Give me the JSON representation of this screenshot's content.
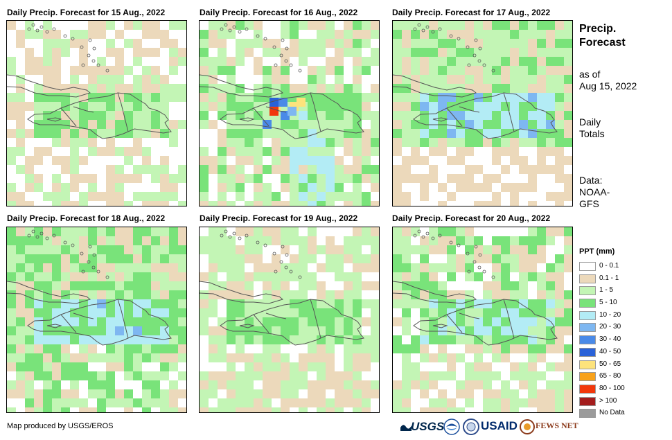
{
  "panels": [
    {
      "title": "Daily Precip. Forecast for 15 Aug., 2022"
    },
    {
      "title": "Daily Precip. Forecast for 16 Aug., 2022"
    },
    {
      "title": "Daily Precip. Forecast for 17 Aug., 2022"
    },
    {
      "title": "Daily Precip. Forecast for 18 Aug., 2022"
    },
    {
      "title": "Daily Precip. Forecast for 19 Aug., 2022"
    },
    {
      "title": "Daily Precip. Forecast for 20 Aug., 2022"
    }
  ],
  "sidebar": {
    "title_line1": "Precip.",
    "title_line2": "Forecast",
    "asof_line1": "as of",
    "asof_line2": "Aug 15, 2022",
    "totals_line1": "Daily",
    "totals_line2": "Totals",
    "data_line1": "Data:",
    "data_line2": "NOAA-",
    "data_line3": "GFS"
  },
  "legend": {
    "title": "PPT (mm)",
    "items": [
      {
        "label": "0 - 0.1",
        "color": "#ffffff"
      },
      {
        "label": "0.1 - 1",
        "color": "#ecd9bb"
      },
      {
        "label": "1 - 5",
        "color": "#c3f5b5"
      },
      {
        "label": "5 - 10",
        "color": "#79e37a"
      },
      {
        "label": "10 - 20",
        "color": "#b3ecf5"
      },
      {
        "label": "20 - 30",
        "color": "#7eb7f1"
      },
      {
        "label": "30 - 40",
        "color": "#4a8ae8"
      },
      {
        "label": "40 - 50",
        "color": "#2a62d8"
      },
      {
        "label": "50 - 65",
        "color": "#fde37c"
      },
      {
        "label": "65 - 80",
        "color": "#f8a21b"
      },
      {
        "label": "80 - 100",
        "color": "#f2380c"
      },
      {
        "label": "> 100",
        "color": "#a41d1d"
      },
      {
        "label": "No Data",
        "color": "#9b9b9b"
      }
    ]
  },
  "footer": {
    "credit": "Map produced by USGS/EROS",
    "logo_usgs": "USGS",
    "logo_usaid": "USAID",
    "logo_fewsnet": "FEWS NET"
  }
}
